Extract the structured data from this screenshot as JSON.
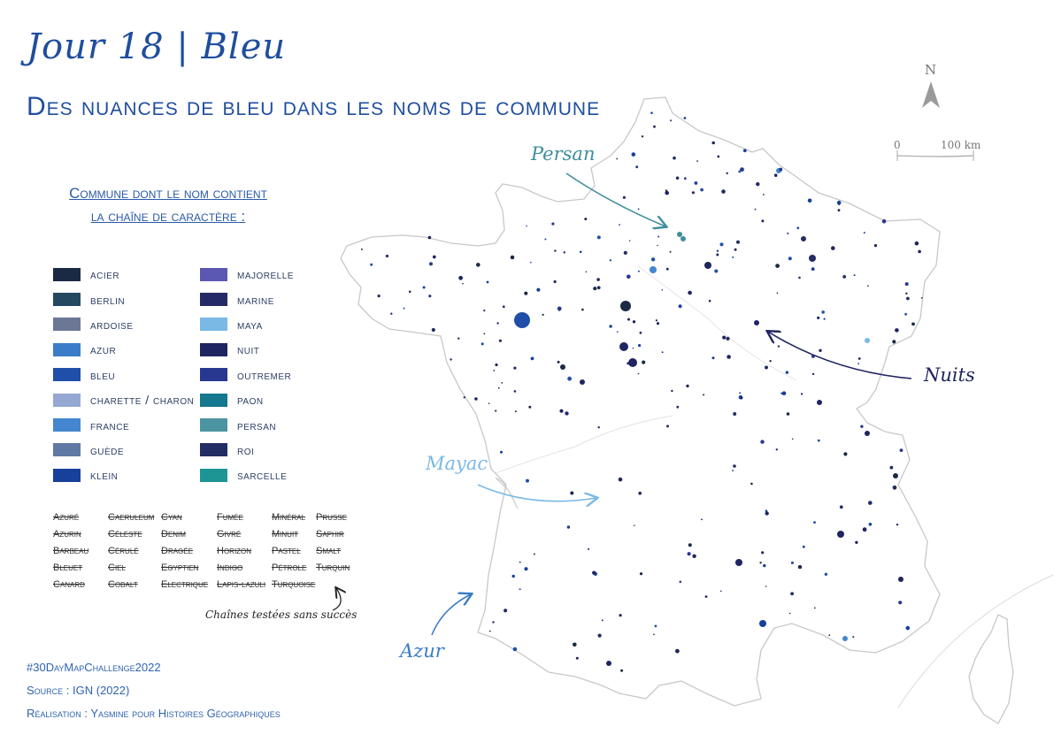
{
  "title": "Jour 18 | Bleu",
  "subtitle": "Des nuances de bleu dans les noms de commune",
  "legend": {
    "heading_line1": "Commune dont le nom contient",
    "heading_line2": "la chaîne de caractère :",
    "items": [
      {
        "label": "acier",
        "color": "#1b2a44"
      },
      {
        "label": "berlin",
        "color": "#244860"
      },
      {
        "label": "ardoise",
        "color": "#6b7794"
      },
      {
        "label": "azur",
        "color": "#3a7cc7"
      },
      {
        "label": "bleu",
        "color": "#1f4fa8"
      },
      {
        "label": "charette / charon",
        "color": "#95a8d4"
      },
      {
        "label": "france",
        "color": "#4486cf"
      },
      {
        "label": "guède",
        "color": "#5f79a5"
      },
      {
        "label": "klein",
        "color": "#17409b"
      },
      {
        "label": "majorelle",
        "color": "#5a58b3"
      },
      {
        "label": "marine",
        "color": "#232a66"
      },
      {
        "label": "maya",
        "color": "#7ab9e6"
      },
      {
        "label": "nuit",
        "color": "#1f2560"
      },
      {
        "label": "outremer",
        "color": "#28378f"
      },
      {
        "label": "paon",
        "color": "#15788f"
      },
      {
        "label": "persan",
        "color": "#4d94a3"
      },
      {
        "label": "roi",
        "color": "#222d63"
      },
      {
        "label": "sarcelle",
        "color": "#1e9595"
      }
    ]
  },
  "failed_strings": {
    "columns": [
      [
        "Azuré",
        "Azurin",
        "Barbeau",
        "Bleuet",
        "Canard"
      ],
      [
        "Caeruleum",
        "Céleste",
        "Cérulé",
        "Ciel",
        "Cobalt"
      ],
      [
        "Cyan",
        "Denim",
        "Dragée",
        "Egyptien",
        "Electrique"
      ],
      [
        "Fumée",
        "Givré",
        "Horizon",
        "Indigo",
        "Lapis-lazuli"
      ],
      [
        "Minéral",
        "Minuit",
        "Pastel",
        "Pétrole",
        "Turquoise"
      ],
      [
        "Prusse",
        "Saphir",
        "Smalt",
        "Turquin"
      ]
    ],
    "note": "Chaînes testées sans succès"
  },
  "footer": {
    "hashtag": "#30DayMapChallenge2022",
    "source": "Source : IGN (2022)",
    "credit": "Réalisation : Yasmine pour Histoires Géographiques"
  },
  "annotations": [
    {
      "id": "persan",
      "text": "Persan",
      "color": "#3f8e9c"
    },
    {
      "id": "nuits",
      "text": "Nuits",
      "color": "#1f2560"
    },
    {
      "id": "mayac",
      "text": "Mayac",
      "color": "#7ab9e6"
    },
    {
      "id": "azur",
      "text": "Azur",
      "color": "#3a7cc7"
    }
  ],
  "north_arrow": "N",
  "scale": {
    "start": "0",
    "end": "100 km"
  }
}
